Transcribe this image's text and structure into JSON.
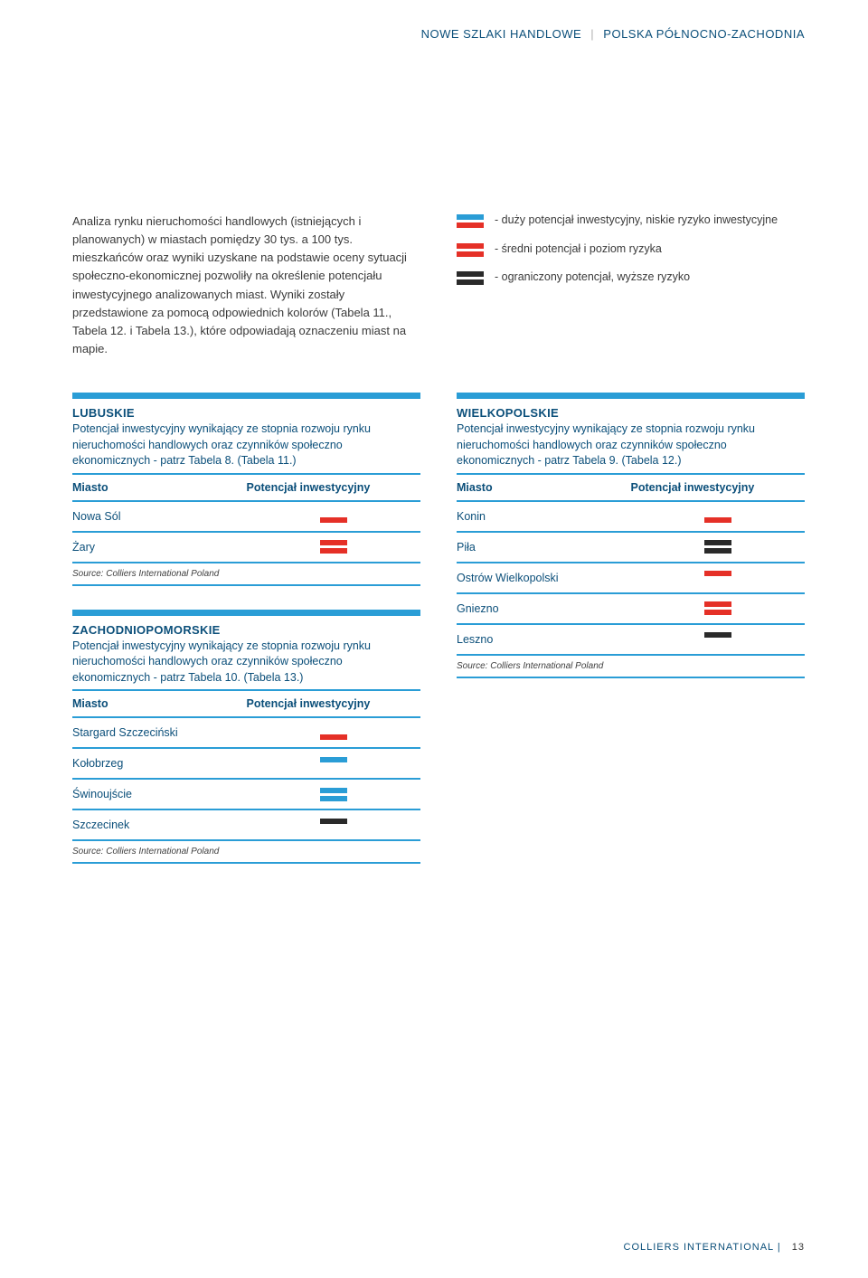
{
  "colors": {
    "accent": "#2a9dd6",
    "darkblue": "#0b4f7a",
    "red": "#e53027",
    "black": "#2a2a2a",
    "blue": "#2a9dd6",
    "white": "#ffffff"
  },
  "header": {
    "left": "NOWE SZLAKI HANDLOWE",
    "right": "POLSKA PÓŁNOCNO-ZACHODNIA"
  },
  "intro": "Analiza rynku nieruchomości handlowych (istniejących i planowanych) w miastach pomiędzy 30 tys. a 100 tys. mieszkańców oraz wyniki uzyskane na podstawie oceny sytuacji społeczno-ekonomicznej pozwoliły na określenie potencjału inwestycyjnego analizowanych miast. Wyniki zostały przedstawione za pomocą odpowiednich kolorów (Tabela 11., Tabela 12. i Tabela 13.), które odpowiadają oznaczeniu miast na mapie.",
  "legend": [
    {
      "top": "#2a9dd6",
      "bot": "#e53027",
      "text": "- duży potencjał inwestycyjny, niskie ryzyko inwestycyjne"
    },
    {
      "top": "#e53027",
      "bot": "#e53027",
      "text": "- średni potencjał i poziom ryzyka"
    },
    {
      "top": "#2a2a2a",
      "bot": "#2a2a2a",
      "text": "- ograniczony potencjał, wyższe ryzyko"
    }
  ],
  "table_header": {
    "c1": "Miasto",
    "c2": "Potencjał inwestycyjny"
  },
  "source": "Source: Colliers International Poland",
  "tables": {
    "lubuskie": {
      "title": "LUBUSKIE",
      "desc": "Potencjał inwestycyjny wynikający ze stopnia rozwoju rynku nieruchomości handlowych oraz czynników społeczno ekonomicznych - patrz Tabela 8. (Tabela 11.)",
      "rows": [
        {
          "name": "Nowa Sól",
          "top": "#ffffff",
          "bot": "#e53027"
        },
        {
          "name": "Żary",
          "top": "#e53027",
          "bot": "#e53027"
        }
      ]
    },
    "zach": {
      "title": "ZACHODNIOPOMORSKIE",
      "desc": "Potencjał inwestycyjny wynikający ze stopnia rozwoju rynku nieruchomości handlowych oraz czynników społeczno ekonomicznych - patrz Tabela 10. (Tabela 13.)",
      "rows": [
        {
          "name": "Stargard Szczeciński",
          "top": "#ffffff",
          "bot": "#e53027"
        },
        {
          "name": "Kołobrzeg",
          "top": "#2a9dd6",
          "bot": "#ffffff"
        },
        {
          "name": "Świnoujście",
          "top": "#2a9dd6",
          "bot": "#2a9dd6"
        },
        {
          "name": "Szczecinek",
          "top": "#2a2a2a",
          "bot": "#ffffff"
        }
      ]
    },
    "wielk": {
      "title": "WIELKOPOLSKIE",
      "desc": "Potencjał inwestycyjny wynikający ze stopnia rozwoju rynku nieruchomości handlowych oraz czynników społeczno ekonomicznych - patrz Tabela 9. (Tabela 12.)",
      "rows": [
        {
          "name": "Konin",
          "top": "#ffffff",
          "bot": "#e53027"
        },
        {
          "name": "Piła",
          "top": "#2a2a2a",
          "bot": "#2a2a2a"
        },
        {
          "name": "Ostrów Wielkopolski",
          "top": "#e53027",
          "bot": "#ffffff"
        },
        {
          "name": "Gniezno",
          "top": "#e53027",
          "bot": "#e53027"
        },
        {
          "name": "Leszno",
          "top": "#2a2a2a",
          "bot": "#ffffff"
        }
      ]
    }
  },
  "footer": {
    "brand": "COLLIERS INTERNATIONAL",
    "page": "13"
  }
}
